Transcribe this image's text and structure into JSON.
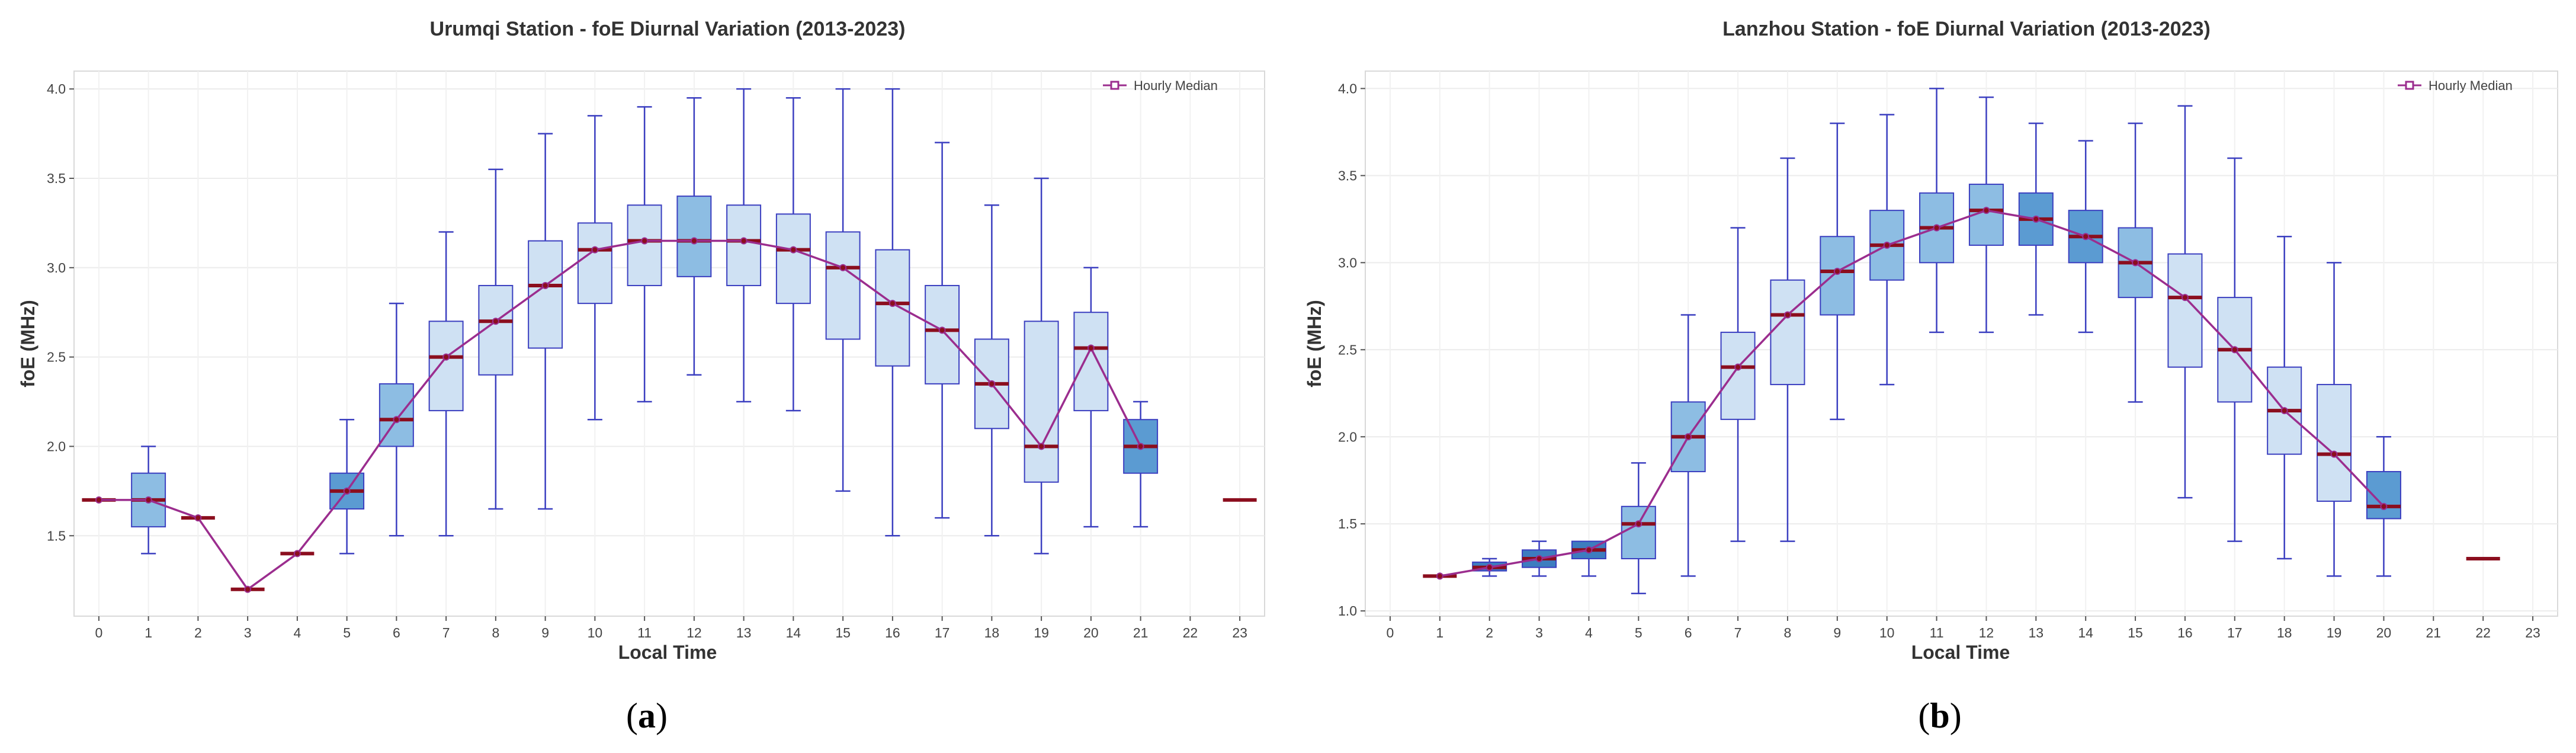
{
  "chart_data": [
    {
      "type": "box",
      "title": "Urumqi Station - foE Diurnal Variation (2013-2023)",
      "xlabel": "Local Time",
      "ylabel": "foE (MHz)",
      "xlim": [
        -0.5,
        23.5
      ],
      "ylim": [
        1.05,
        4.1
      ],
      "xticks": [
        "0",
        "1",
        "2",
        "3",
        "4",
        "5",
        "6",
        "7",
        "8",
        "9",
        "10",
        "11",
        "12",
        "13",
        "14",
        "15",
        "16",
        "17",
        "18",
        "19",
        "20",
        "21",
        "22",
        "23"
      ],
      "yticks": [
        "1.5",
        "2.0",
        "2.5",
        "3.0",
        "3.5",
        "4.0"
      ],
      "legend": {
        "label": "Hourly Median",
        "position": "top-right"
      },
      "grid": true,
      "median_line_color": "#9b2d8e",
      "boxes": [
        {
          "x": 0,
          "min": 1.7,
          "q1": 1.7,
          "median": 1.7,
          "q3": 1.7,
          "max": 1.7
        },
        {
          "x": 1,
          "min": 1.4,
          "q1": 1.55,
          "median": 1.7,
          "q3": 1.85,
          "max": 2.0
        },
        {
          "x": 2,
          "min": 1.6,
          "q1": 1.6,
          "median": 1.6,
          "q3": 1.6,
          "max": 1.6
        },
        {
          "x": 3,
          "min": 1.2,
          "q1": 1.2,
          "median": 1.2,
          "q3": 1.2,
          "max": 1.2
        },
        {
          "x": 4,
          "min": 1.4,
          "q1": 1.4,
          "median": 1.4,
          "q3": 1.4,
          "max": 1.4
        },
        {
          "x": 5,
          "min": 1.4,
          "q1": 1.65,
          "median": 1.75,
          "q3": 1.85,
          "max": 2.15
        },
        {
          "x": 6,
          "min": 1.5,
          "q1": 2.0,
          "median": 2.15,
          "q3": 2.35,
          "max": 2.8
        },
        {
          "x": 7,
          "min": 1.5,
          "q1": 2.2,
          "median": 2.5,
          "q3": 2.7,
          "max": 3.2
        },
        {
          "x": 8,
          "min": 1.65,
          "q1": 2.4,
          "median": 2.7,
          "q3": 2.9,
          "max": 3.55
        },
        {
          "x": 9,
          "min": 1.65,
          "q1": 2.55,
          "median": 2.9,
          "q3": 3.15,
          "max": 3.75
        },
        {
          "x": 10,
          "min": 2.15,
          "q1": 2.8,
          "median": 3.1,
          "q3": 3.25,
          "max": 3.85
        },
        {
          "x": 11,
          "min": 2.25,
          "q1": 2.9,
          "median": 3.15,
          "q3": 3.35,
          "max": 3.9
        },
        {
          "x": 12,
          "min": 2.4,
          "q1": 2.95,
          "median": 3.15,
          "q3": 3.4,
          "max": 3.95
        },
        {
          "x": 13,
          "min": 2.25,
          "q1": 2.9,
          "median": 3.15,
          "q3": 3.35,
          "max": 4.0
        },
        {
          "x": 14,
          "min": 2.2,
          "q1": 2.8,
          "median": 3.1,
          "q3": 3.3,
          "max": 3.95
        },
        {
          "x": 15,
          "min": 1.75,
          "q1": 2.6,
          "median": 3.0,
          "q3": 3.2,
          "max": 4.0
        },
        {
          "x": 16,
          "min": 1.5,
          "q1": 2.45,
          "median": 2.8,
          "q3": 3.1,
          "max": 4.0
        },
        {
          "x": 17,
          "min": 1.6,
          "q1": 2.35,
          "median": 2.65,
          "q3": 2.9,
          "max": 3.7
        },
        {
          "x": 18,
          "min": 1.5,
          "q1": 2.1,
          "median": 2.35,
          "q3": 2.6,
          "max": 3.35
        },
        {
          "x": 19,
          "min": 1.4,
          "q1": 1.8,
          "median": 2.0,
          "q3": 2.7,
          "max": 3.5
        },
        {
          "x": 20,
          "min": 1.55,
          "q1": 2.2,
          "median": 2.55,
          "q3": 2.75,
          "max": 3.0
        },
        {
          "x": 21,
          "min": 1.55,
          "q1": 1.85,
          "median": 2.0,
          "q3": 2.15,
          "max": 2.25
        },
        {
          "x": 23,
          "min": 1.7,
          "q1": 1.7,
          "median": 1.7,
          "q3": 1.7,
          "max": 1.7
        }
      ],
      "median_series": {
        "name": "Hourly Median",
        "x": [
          0,
          1,
          2,
          3,
          4,
          5,
          6,
          7,
          8,
          9,
          10,
          11,
          12,
          13,
          14,
          15,
          16,
          17,
          18,
          19,
          20,
          21
        ],
        "y": [
          1.7,
          1.7,
          1.6,
          1.2,
          1.4,
          1.75,
          2.15,
          2.5,
          2.7,
          2.9,
          3.1,
          3.15,
          3.15,
          3.15,
          3.1,
          3.0,
          2.8,
          2.65,
          2.35,
          2.0,
          2.55,
          2.0
        ]
      }
    },
    {
      "type": "box",
      "title": "Lanzhou Station - foE Diurnal Variation (2013-2023)",
      "xlabel": "Local Time",
      "ylabel": "foE (MHz)",
      "xlim": [
        -0.5,
        23.5
      ],
      "ylim": [
        0.97,
        4.1
      ],
      "xticks": [
        "0",
        "1",
        "2",
        "3",
        "4",
        "5",
        "6",
        "7",
        "8",
        "9",
        "10",
        "11",
        "12",
        "13",
        "14",
        "15",
        "16",
        "17",
        "18",
        "19",
        "20",
        "21",
        "22",
        "23"
      ],
      "yticks": [
        "1.0",
        "1.5",
        "2.0",
        "2.5",
        "3.0",
        "3.5",
        "4.0"
      ],
      "legend": {
        "label": "Hourly Median",
        "position": "top-right"
      },
      "grid": true,
      "median_line_color": "#9b2d8e",
      "boxes": [
        {
          "x": 1,
          "min": 1.2,
          "q1": 1.2,
          "median": 1.2,
          "q3": 1.2,
          "max": 1.2
        },
        {
          "x": 2,
          "min": 1.2,
          "q1": 1.23,
          "median": 1.25,
          "q3": 1.28,
          "max": 1.3
        },
        {
          "x": 3,
          "min": 1.2,
          "q1": 1.25,
          "median": 1.3,
          "q3": 1.35,
          "max": 1.4
        },
        {
          "x": 4,
          "min": 1.2,
          "q1": 1.3,
          "median": 1.35,
          "q3": 1.4,
          "max": 1.4
        },
        {
          "x": 5,
          "min": 1.1,
          "q1": 1.3,
          "median": 1.5,
          "q3": 1.6,
          "max": 1.85
        },
        {
          "x": 6,
          "min": 1.2,
          "q1": 1.8,
          "median": 2.0,
          "q3": 2.2,
          "max": 2.7
        },
        {
          "x": 7,
          "min": 1.4,
          "q1": 2.1,
          "median": 2.4,
          "q3": 2.6,
          "max": 3.2
        },
        {
          "x": 8,
          "min": 1.4,
          "q1": 2.3,
          "median": 2.7,
          "q3": 2.9,
          "max": 3.6
        },
        {
          "x": 9,
          "min": 2.1,
          "q1": 2.7,
          "median": 2.95,
          "q3": 3.15,
          "max": 3.8
        },
        {
          "x": 10,
          "min": 2.3,
          "q1": 2.9,
          "median": 3.1,
          "q3": 3.3,
          "max": 3.85
        },
        {
          "x": 11,
          "min": 2.6,
          "q1": 3.0,
          "median": 3.2,
          "q3": 3.4,
          "max": 4.0
        },
        {
          "x": 12,
          "min": 2.6,
          "q1": 3.1,
          "median": 3.3,
          "q3": 3.45,
          "max": 3.95
        },
        {
          "x": 13,
          "min": 2.7,
          "q1": 3.1,
          "median": 3.25,
          "q3": 3.4,
          "max": 3.8
        },
        {
          "x": 14,
          "min": 2.6,
          "q1": 3.0,
          "median": 3.15,
          "q3": 3.3,
          "max": 3.7
        },
        {
          "x": 15,
          "min": 2.2,
          "q1": 2.8,
          "median": 3.0,
          "q3": 3.2,
          "max": 3.8
        },
        {
          "x": 16,
          "min": 1.65,
          "q1": 2.4,
          "median": 2.8,
          "q3": 3.05,
          "max": 3.9
        },
        {
          "x": 17,
          "min": 1.4,
          "q1": 2.2,
          "median": 2.5,
          "q3": 2.8,
          "max": 3.6
        },
        {
          "x": 18,
          "min": 1.3,
          "q1": 1.9,
          "median": 2.15,
          "q3": 2.4,
          "max": 3.15
        },
        {
          "x": 19,
          "min": 1.2,
          "q1": 1.63,
          "median": 1.9,
          "q3": 2.3,
          "max": 3.0
        },
        {
          "x": 20,
          "min": 1.2,
          "q1": 1.53,
          "median": 1.6,
          "q3": 1.8,
          "max": 2.0
        },
        {
          "x": 22,
          "min": 1.3,
          "q1": 1.3,
          "median": 1.3,
          "q3": 1.3,
          "max": 1.3
        }
      ],
      "median_series": {
        "name": "Hourly Median",
        "x": [
          1,
          2,
          3,
          4,
          5,
          6,
          7,
          8,
          9,
          10,
          11,
          12,
          13,
          14,
          15,
          16,
          17,
          18,
          19,
          20
        ],
        "y": [
          1.2,
          1.25,
          1.3,
          1.35,
          1.5,
          2.0,
          2.4,
          2.7,
          2.95,
          3.1,
          3.2,
          3.3,
          3.25,
          3.15,
          3.0,
          2.8,
          2.5,
          2.15,
          1.9,
          1.6
        ]
      }
    }
  ],
  "panel_labels": [
    {
      "open": "(",
      "letter": "a",
      "close": ")"
    },
    {
      "open": "(",
      "letter": "b",
      "close": ")"
    }
  ]
}
